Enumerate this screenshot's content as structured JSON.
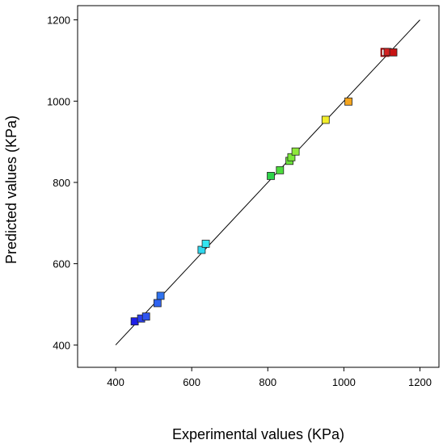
{
  "chart_data": {
    "type": "scatter",
    "xlabel": "Experimental  values (KPa)",
    "ylabel": "Predicted values (KPa)",
    "xlim": [
      300,
      1250
    ],
    "ylim": [
      345,
      1235
    ],
    "x_ticks": [
      400,
      600,
      800,
      1000,
      1200
    ],
    "y_ticks": [
      400,
      600,
      800,
      1000,
      1200
    ],
    "x_tick_labels": [
      "400",
      "600",
      "800",
      "1000",
      "1200"
    ],
    "y_tick_labels": [
      "400",
      "600",
      "800",
      "1000",
      "1200"
    ],
    "grid": false,
    "legend": "none",
    "reference_line": {
      "from": [
        400,
        400
      ],
      "to": [
        1200,
        1200
      ],
      "color": "#000000"
    },
    "points": [
      {
        "x": 450,
        "y": 458,
        "color": "#1f1fe8"
      },
      {
        "x": 467,
        "y": 465,
        "color": "#2a3ff0"
      },
      {
        "x": 480,
        "y": 470,
        "color": "#2f55f0"
      },
      {
        "x": 510,
        "y": 503,
        "color": "#2f63f0"
      },
      {
        "x": 518,
        "y": 521,
        "color": "#2f73f0"
      },
      {
        "x": 626,
        "y": 634,
        "color": "#2fd8ee"
      },
      {
        "x": 637,
        "y": 649,
        "color": "#33e5f0"
      },
      {
        "x": 808,
        "y": 816,
        "color": "#2fd34a"
      },
      {
        "x": 832,
        "y": 830,
        "color": "#4cdc3c"
      },
      {
        "x": 857,
        "y": 853,
        "color": "#6ae23a"
      },
      {
        "x": 862,
        "y": 862,
        "color": "#7ce83a"
      },
      {
        "x": 873,
        "y": 876,
        "color": "#8ee83a"
      },
      {
        "x": 952,
        "y": 954,
        "color": "#f2ee2a"
      },
      {
        "x": 1012,
        "y": 999,
        "color": "#f5a51f"
      },
      {
        "x": 1108,
        "y": 1120,
        "color": "#ffffff",
        "stroke": "#8b0000",
        "stroke_width": 2
      },
      {
        "x": 1115,
        "y": 1121,
        "color": "#d42020"
      },
      {
        "x": 1130,
        "y": 1120,
        "color": "#c81414"
      }
    ]
  }
}
